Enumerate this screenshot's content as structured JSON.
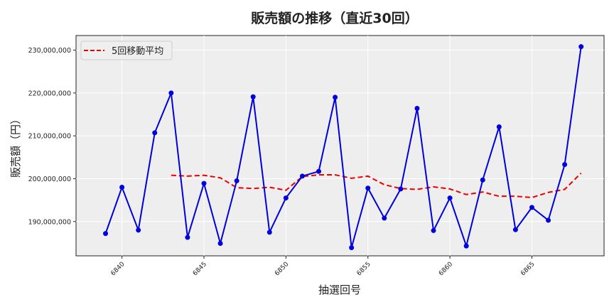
{
  "chart_data": {
    "type": "line",
    "title": "販売額の推移（直近30回）",
    "xlabel": "抽選回号",
    "ylabel": "販売額（円）",
    "x": [
      6839,
      6840,
      6841,
      6842,
      6843,
      6844,
      6845,
      6846,
      6847,
      6848,
      6849,
      6850,
      6851,
      6852,
      6853,
      6854,
      6855,
      6856,
      6857,
      6858,
      6859,
      6860,
      6861,
      6862,
      6863,
      6864,
      6865,
      6866,
      6867,
      6868
    ],
    "series": [
      {
        "name": "販売額",
        "color": "#0000dd",
        "style": "solid-with-markers",
        "values": [
          187200000,
          198000000,
          188000000,
          210700000,
          220000000,
          186300000,
          198900000,
          184900000,
          199500000,
          219100000,
          187500000,
          195500000,
          200600000,
          201700000,
          219000000,
          183900000,
          197800000,
          190800000,
          197600000,
          216400000,
          187900000,
          195500000,
          184300000,
          199700000,
          212100000,
          188100000,
          193300000,
          190300000,
          203300000,
          230800000
        ]
      },
      {
        "name": "5回移動平均",
        "color": "#ee0000",
        "style": "dashed",
        "values": [
          null,
          null,
          null,
          null,
          200800000,
          200600000,
          200800000,
          200200000,
          197900000,
          197700000,
          198000000,
          197300000,
          200500000,
          200900000,
          200900000,
          200100000,
          200600000,
          198600000,
          197700000,
          197500000,
          198100000,
          197600000,
          196300000,
          196900000,
          195900000,
          195900000,
          195600000,
          196800000,
          197500000,
          201300000
        ]
      }
    ],
    "xticks": [
      6840,
      6845,
      6850,
      6855,
      6860,
      6865
    ],
    "yticks": [
      190000000,
      200000000,
      210000000,
      220000000,
      230000000
    ],
    "ytick_labels": [
      "190,000,000",
      "200,000,000",
      "210,000,000",
      "220,000,000",
      "230,000,000"
    ],
    "xlim": [
      6837.2,
      6869.4
    ],
    "ylim": [
      182000000,
      233400000
    ],
    "grid": true,
    "legend_position": "upper left"
  },
  "legend": {
    "label": "5回移動平均"
  }
}
